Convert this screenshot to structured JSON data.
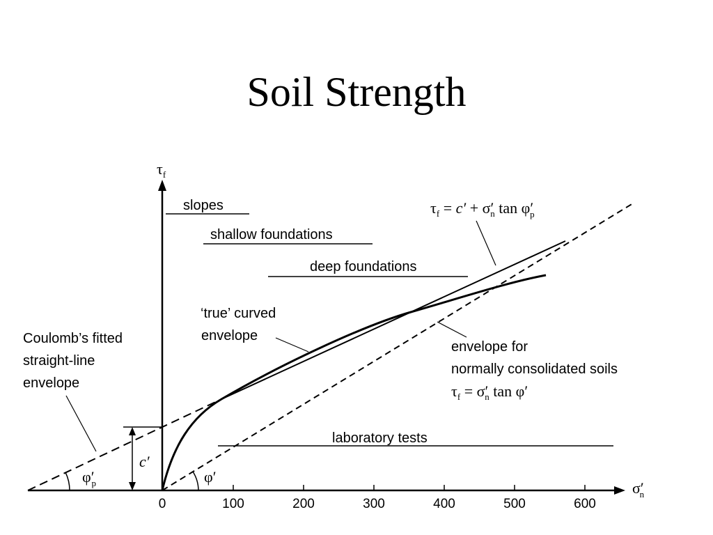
{
  "title": "Soil Strength",
  "axes": {
    "y_label": "τ",
    "y_label_sub": "f",
    "x_label": "σ′",
    "x_label_sub": "n",
    "x_ticks": [
      "0",
      "100",
      "200",
      "300",
      "400",
      "500",
      "600"
    ]
  },
  "ranges": {
    "slopes": "slopes",
    "shallow_foundations": "shallow foundations",
    "deep_foundations": "deep foundations",
    "laboratory_tests": "laboratory tests"
  },
  "labels": {
    "true_curved_line1": "‘true’ curved",
    "true_curved_line2": "envelope",
    "coulomb_line1": "Coulomb’s fitted",
    "coulomb_line2": "straight-line",
    "coulomb_line3": "envelope",
    "nc_line1": "envelope for",
    "nc_line2": "normally consolidated soils",
    "c_prime": "c′",
    "phi_p": "φ′",
    "phi_p_sub": "p",
    "phi": "φ′"
  },
  "equations": {
    "coulomb": {
      "tau": "τ",
      "tau_sub": "f",
      "rhs_a": " = ",
      "c": "c′",
      "rhs_b": " + σ′",
      "sigma_sub": "n",
      "rhs_c": " tan φ′",
      "phi_sub": "p"
    },
    "nc": {
      "tau": "τ",
      "tau_sub": "f",
      "rhs_a": " = σ′",
      "sigma_sub": "n",
      "rhs_b": " tan φ′"
    }
  }
}
